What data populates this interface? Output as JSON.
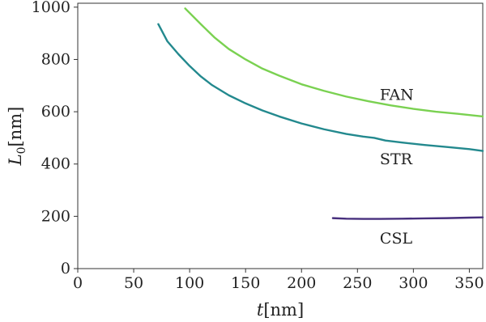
{
  "chart_data": {
    "type": "line",
    "title": "",
    "xlabel_var": "t",
    "xlabel_unit": "[nm]",
    "ylabel_var": "L",
    "ylabel_sub": "0",
    "ylabel_unit": "[nm]",
    "xlim": [
      0,
      362
    ],
    "ylim": [
      0,
      1015
    ],
    "xticks": [
      0,
      50,
      100,
      150,
      200,
      250,
      300,
      350
    ],
    "yticks": [
      0,
      200,
      400,
      600,
      800,
      1000
    ],
    "grid": false,
    "legend": "none (inline labels)",
    "series": [
      {
        "name": "FAN",
        "color": "#7ad151",
        "label_at": [
          270,
          660
        ],
        "x": [
          96,
          110,
          122,
          135,
          150,
          165,
          180,
          200,
          220,
          240,
          260,
          280,
          300,
          320,
          340,
          362
        ],
        "y": [
          995,
          935,
          885,
          840,
          800,
          765,
          738,
          705,
          680,
          658,
          640,
          624,
          611,
          600,
          592,
          582
        ]
      },
      {
        "name": "STR",
        "color": "#23898e",
        "label_at": [
          270,
          415
        ],
        "x": [
          72,
          80,
          90,
          100,
          110,
          120,
          135,
          150,
          165,
          180,
          200,
          220,
          240,
          255,
          265,
          275,
          290,
          310,
          330,
          350,
          362
        ],
        "y": [
          935,
          870,
          820,
          775,
          735,
          702,
          663,
          632,
          605,
          582,
          555,
          533,
          515,
          505,
          500,
          490,
          482,
          473,
          465,
          457,
          450
        ]
      },
      {
        "name": "CSL",
        "color": "#472f7d",
        "label_at": [
          270,
          112
        ],
        "x": [
          228,
          240,
          255,
          270,
          290,
          310,
          330,
          350,
          362
        ],
        "y": [
          193,
          191,
          190,
          190,
          191,
          192,
          193,
          195,
          196
        ]
      }
    ]
  }
}
